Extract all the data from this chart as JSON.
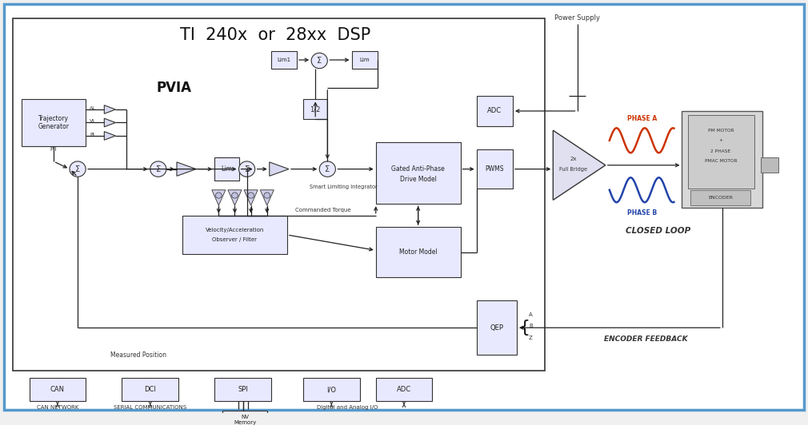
{
  "title": "TI  240x  or  28xx  DSP",
  "bg_color": "#f0f0f0",
  "outer_border_color": "#5599cc",
  "inner_border_color": "#333333",
  "box_fill": "#e8e8ff",
  "box_edge": "#333333",
  "text_color": "#222222",
  "phase_a_color": "#cc3300",
  "phase_b_color": "#2244aa",
  "pvia_label": "PVIA",
  "closed_loop_label": "CLOSED LOOP",
  "power_supply_label": "Power Supply",
  "encoder_feedback_label": "ENCODER FEEDBACK",
  "measured_position_label": "Measured Position",
  "commanded_torque_label": "Commanded Torque"
}
